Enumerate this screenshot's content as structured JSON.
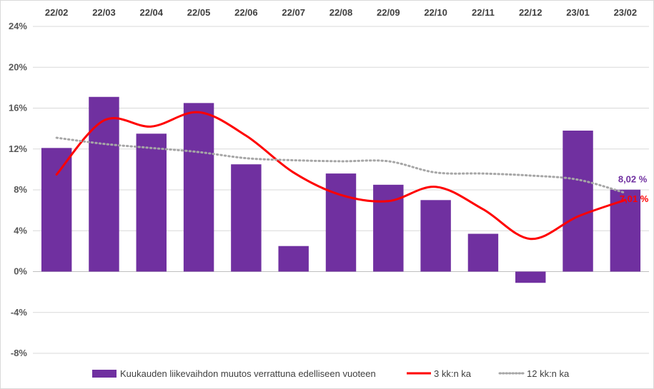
{
  "chart_data": {
    "type": "bar",
    "categories": [
      "22/02",
      "22/03",
      "22/04",
      "22/05",
      "22/06",
      "22/07",
      "22/08",
      "22/09",
      "22/10",
      "22/11",
      "22/12",
      "23/01",
      "23/02"
    ],
    "ylim": [
      -8,
      24
    ],
    "yticks": [
      -8,
      -4,
      0,
      4,
      8,
      12,
      16,
      20,
      24
    ],
    "ytick_labels": [
      "-8%",
      "-4%",
      "0%",
      "4%",
      "8%",
      "12%",
      "16%",
      "20%",
      "24%"
    ],
    "grid": true,
    "legend_position": "bottom",
    "series": [
      {
        "name": "Kuukauden liikevaihdon muutos verrattuna edelliseen vuoteen",
        "type": "bar",
        "color": "#7030a0",
        "values": [
          12.1,
          17.1,
          13.5,
          16.5,
          10.5,
          2.5,
          9.6,
          8.5,
          7.0,
          3.7,
          -1.1,
          13.8,
          8.02
        ]
      },
      {
        "name": "3 kk:n ka",
        "type": "line",
        "style": "solid",
        "color": "#ff0000",
        "values": [
          9.5,
          14.8,
          14.2,
          15.6,
          13.3,
          9.7,
          7.5,
          6.9,
          8.3,
          6.1,
          3.2,
          5.4,
          7.01
        ]
      },
      {
        "name": "12 kk:n ka",
        "type": "line",
        "style": "dotted",
        "color": "#a6a6a6",
        "values": [
          13.1,
          12.5,
          12.1,
          11.7,
          11.1,
          10.9,
          10.8,
          10.8,
          9.7,
          9.6,
          9.4,
          9.0,
          7.7
        ]
      }
    ],
    "data_labels": [
      {
        "text": "8,02 %",
        "series": 0,
        "index": 12,
        "color": "#7030a0"
      },
      {
        "text": "7,01 %",
        "series": 1,
        "index": 12,
        "color": "#ff0000"
      }
    ]
  }
}
